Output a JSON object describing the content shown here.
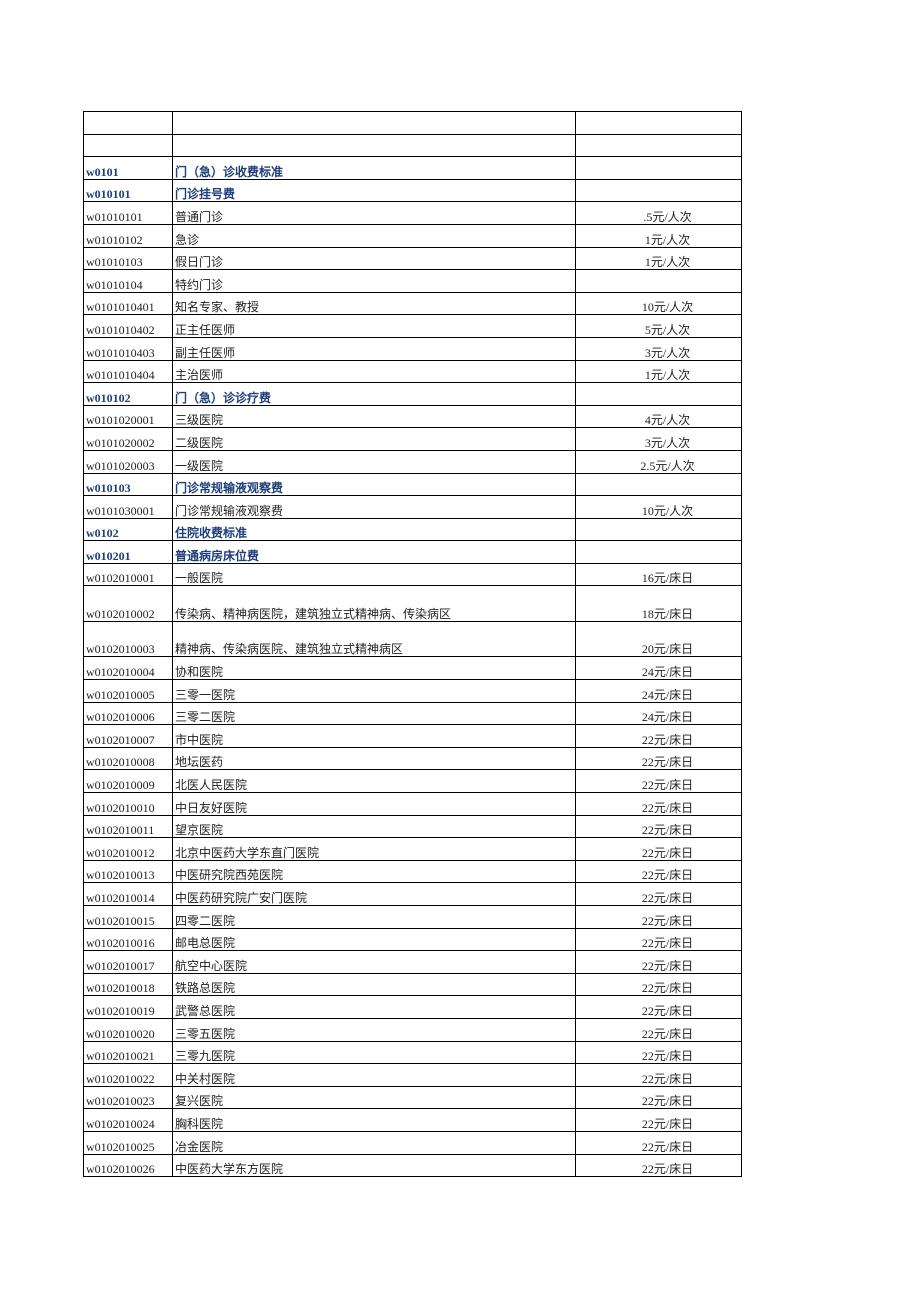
{
  "header_rows": [
    [
      "",
      "",
      ""
    ],
    [
      "",
      "",
      ""
    ]
  ],
  "rows": [
    {
      "code": "w0101",
      "name": "门（急）诊收费标准",
      "price": "",
      "bold": true
    },
    {
      "code": "w010101",
      "name": "门诊挂号费",
      "price": "",
      "bold": true
    },
    {
      "code": "w01010101",
      "name": "普通门诊",
      "price": ".5元/人次"
    },
    {
      "code": "w01010102",
      "name": "急诊",
      "price": "1元/人次"
    },
    {
      "code": "w01010103",
      "name": "假日门诊",
      "price": "1元/人次"
    },
    {
      "code": "w01010104",
      "name": "特约门诊",
      "price": ""
    },
    {
      "code": "w0101010401",
      "name": "知名专家、教授",
      "price": "10元/人次"
    },
    {
      "code": "w0101010402",
      "name": "正主任医师",
      "price": "5元/人次"
    },
    {
      "code": "w0101010403",
      "name": "副主任医师",
      "price": "3元/人次"
    },
    {
      "code": "w0101010404",
      "name": "主治医师",
      "price": "1元/人次"
    },
    {
      "code": "w010102",
      "name": "门（急）诊诊疗费",
      "price": "",
      "bold": true
    },
    {
      "code": "w0101020001",
      "name": "三级医院",
      "price": "4元/人次"
    },
    {
      "code": "w0101020002",
      "name": "二级医院",
      "price": "3元/人次"
    },
    {
      "code": "w0101020003",
      "name": "一级医院",
      "price": "2.5元/人次"
    },
    {
      "code": "w010103",
      "name": "门诊常规输液观察费",
      "price": "",
      "bold": true
    },
    {
      "code": "w0101030001",
      "name": "门诊常规输液观察费",
      "price": "10元/人次"
    },
    {
      "code": "w0102",
      "name": "住院收费标准",
      "price": "",
      "bold": true
    },
    {
      "code": "w010201",
      "name": "普通病房床位费",
      "price": "",
      "bold": true
    },
    {
      "code": "w0102010001",
      "name": "一般医院",
      "price": "16元/床日"
    },
    {
      "code": "w0102010002",
      "name": "传染病、精神病医院，建筑独立式精神病、传染病区",
      "price": "18元/床日",
      "tall": true
    },
    {
      "code": "w0102010003",
      "name": "精神病、传染病医院、建筑独立式精神病区",
      "price": "20元/床日",
      "tall": true
    },
    {
      "code": "w0102010004",
      "name": "协和医院",
      "price": "24元/床日"
    },
    {
      "code": "w0102010005",
      "name": "三零一医院",
      "price": "24元/床日"
    },
    {
      "code": "w0102010006",
      "name": "三零二医院",
      "price": "24元/床日"
    },
    {
      "code": "w0102010007",
      "name": "市中医院",
      "price": "22元/床日"
    },
    {
      "code": "w0102010008",
      "name": "地坛医药",
      "price": "22元/床日"
    },
    {
      "code": "w0102010009",
      "name": "北医人民医院",
      "price": "22元/床日"
    },
    {
      "code": "w0102010010",
      "name": "中日友好医院",
      "price": "22元/床日"
    },
    {
      "code": "w0102010011",
      "name": "望京医院",
      "price": "22元/床日"
    },
    {
      "code": "w0102010012",
      "name": "北京中医药大学东直门医院",
      "price": "22元/床日"
    },
    {
      "code": "w0102010013",
      "name": "中医研究院西苑医院",
      "price": "22元/床日"
    },
    {
      "code": "w0102010014",
      "name": "中医药研究院广安门医院",
      "price": "22元/床日"
    },
    {
      "code": "w0102010015",
      "name": "四零二医院",
      "price": "22元/床日"
    },
    {
      "code": "w0102010016",
      "name": "邮电总医院",
      "price": "22元/床日"
    },
    {
      "code": "w0102010017",
      "name": "航空中心医院",
      "price": "22元/床日"
    },
    {
      "code": "w0102010018",
      "name": "铁路总医院",
      "price": "22元/床日"
    },
    {
      "code": "w0102010019",
      "name": "武警总医院",
      "price": "22元/床日"
    },
    {
      "code": "w0102010020",
      "name": "三零五医院",
      "price": "22元/床日"
    },
    {
      "code": "w0102010021",
      "name": "三零九医院",
      "price": "22元/床日"
    },
    {
      "code": "w0102010022",
      "name": "中关村医院",
      "price": "22元/床日"
    },
    {
      "code": "w0102010023",
      "name": "复兴医院",
      "price": "22元/床日"
    },
    {
      "code": "w0102010024",
      "name": "胸科医院",
      "price": "22元/床日"
    },
    {
      "code": "w0102010025",
      "name": "冶金医院",
      "price": "22元/床日"
    },
    {
      "code": "w0102010026",
      "name": "中医药大学东方医院",
      "price": "22元/床日"
    }
  ]
}
